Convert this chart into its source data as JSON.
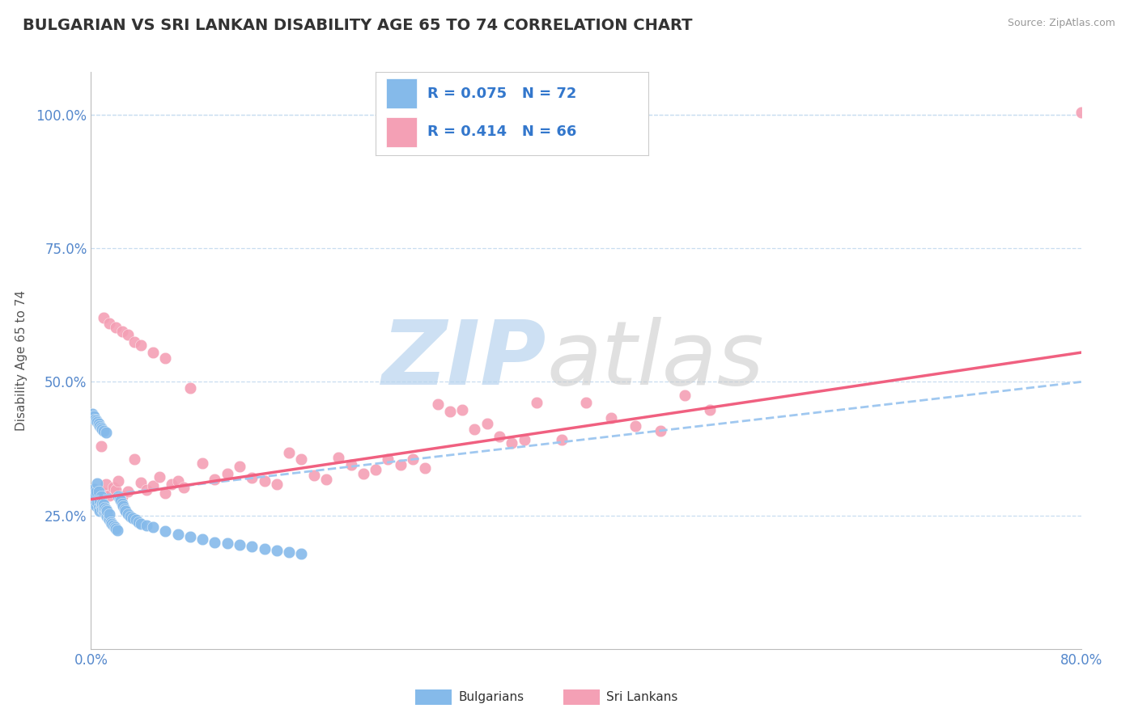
{
  "title": "BULGARIAN VS SRI LANKAN DISABILITY AGE 65 TO 74 CORRELATION CHART",
  "source": "Source: ZipAtlas.com",
  "ylabel": "Disability Age 65 to 74",
  "x_min": 0.0,
  "x_max": 0.8,
  "y_min": 0.0,
  "y_max": 1.08,
  "xticks": [
    0.0,
    0.1,
    0.2,
    0.3,
    0.4,
    0.5,
    0.6,
    0.7,
    0.8
  ],
  "xticklabels": [
    "0.0%",
    "",
    "",
    "",
    "",
    "",
    "",
    "",
    "80.0%"
  ],
  "yticks": [
    0.25,
    0.5,
    0.75,
    1.0
  ],
  "yticklabels": [
    "25.0%",
    "50.0%",
    "75.0%",
    "100.0%"
  ],
  "legend_R1": "R = 0.075",
  "legend_N1": "N = 72",
  "legend_R2": "R = 0.414",
  "legend_N2": "N = 66",
  "bulgarian_color": "#85baea",
  "srilankan_color": "#f4a0b5",
  "trendline1_color": "#a0c8f0",
  "trendline2_color": "#f06080",
  "watermark_color_zip": "#b8d4ee",
  "watermark_color_atlas": "#c8c8c8",
  "title_color": "#333333",
  "title_fontsize": 14,
  "axis_label_color": "#555555",
  "tick_color": "#5588cc",
  "legend_text_color": "#3377cc",
  "bg_color": "#ffffff",
  "grid_color": "#c8ddf0",
  "bulgarian_x": [
    0.001,
    0.002,
    0.002,
    0.003,
    0.003,
    0.004,
    0.004,
    0.005,
    0.005,
    0.006,
    0.006,
    0.007,
    0.007,
    0.008,
    0.008,
    0.009,
    0.009,
    0.01,
    0.01,
    0.011,
    0.011,
    0.012,
    0.012,
    0.013,
    0.013,
    0.014,
    0.015,
    0.015,
    0.016,
    0.017,
    0.018,
    0.019,
    0.02,
    0.021,
    0.022,
    0.023,
    0.024,
    0.025,
    0.026,
    0.027,
    0.028,
    0.03,
    0.032,
    0.034,
    0.036,
    0.038,
    0.04,
    0.045,
    0.05,
    0.06,
    0.07,
    0.08,
    0.09,
    0.1,
    0.11,
    0.12,
    0.13,
    0.14,
    0.15,
    0.16,
    0.17,
    0.001,
    0.002,
    0.003,
    0.004,
    0.005,
    0.006,
    0.007,
    0.008,
    0.009,
    0.01,
    0.012
  ],
  "bulgarian_y": [
    0.28,
    0.29,
    0.3,
    0.27,
    0.285,
    0.268,
    0.295,
    0.275,
    0.31,
    0.265,
    0.295,
    0.258,
    0.278,
    0.268,
    0.285,
    0.262,
    0.272,
    0.258,
    0.27,
    0.255,
    0.265,
    0.252,
    0.262,
    0.248,
    0.258,
    0.245,
    0.242,
    0.252,
    0.238,
    0.235,
    0.232,
    0.228,
    0.225,
    0.222,
    0.285,
    0.282,
    0.278,
    0.272,
    0.268,
    0.262,
    0.258,
    0.252,
    0.248,
    0.245,
    0.242,
    0.238,
    0.235,
    0.232,
    0.228,
    0.22,
    0.215,
    0.21,
    0.205,
    0.2,
    0.198,
    0.195,
    0.192,
    0.188,
    0.185,
    0.182,
    0.178,
    0.44,
    0.435,
    0.43,
    0.428,
    0.425,
    0.422,
    0.418,
    0.415,
    0.412,
    0.408,
    0.405
  ],
  "srilankan_x": [
    0.003,
    0.005,
    0.008,
    0.01,
    0.012,
    0.015,
    0.018,
    0.02,
    0.022,
    0.025,
    0.03,
    0.035,
    0.04,
    0.045,
    0.05,
    0.055,
    0.06,
    0.065,
    0.07,
    0.075,
    0.08,
    0.09,
    0.1,
    0.11,
    0.12,
    0.13,
    0.14,
    0.15,
    0.16,
    0.17,
    0.18,
    0.19,
    0.2,
    0.21,
    0.22,
    0.23,
    0.24,
    0.25,
    0.26,
    0.27,
    0.28,
    0.29,
    0.3,
    0.31,
    0.32,
    0.33,
    0.34,
    0.35,
    0.36,
    0.38,
    0.4,
    0.42,
    0.44,
    0.46,
    0.48,
    0.5,
    0.01,
    0.015,
    0.02,
    0.025,
    0.03,
    0.035,
    0.04,
    0.05,
    0.06,
    0.8
  ],
  "srilankan_y": [
    0.295,
    0.285,
    0.38,
    0.292,
    0.308,
    0.288,
    0.302,
    0.298,
    0.315,
    0.285,
    0.295,
    0.355,
    0.312,
    0.298,
    0.305,
    0.322,
    0.292,
    0.308,
    0.315,
    0.302,
    0.488,
    0.348,
    0.318,
    0.328,
    0.342,
    0.32,
    0.315,
    0.308,
    0.368,
    0.355,
    0.325,
    0.318,
    0.358,
    0.345,
    0.328,
    0.335,
    0.355,
    0.345,
    0.355,
    0.338,
    0.458,
    0.445,
    0.448,
    0.412,
    0.422,
    0.398,
    0.385,
    0.392,
    0.462,
    0.392,
    0.462,
    0.432,
    0.418,
    0.408,
    0.475,
    0.448,
    0.62,
    0.61,
    0.602,
    0.595,
    0.588,
    0.575,
    0.568,
    0.555,
    0.545,
    1.005
  ],
  "trendline1_x0": 0.0,
  "trendline1_x1": 0.8,
  "trendline1_y0": 0.285,
  "trendline1_y1": 0.5,
  "trendline2_x0": 0.0,
  "trendline2_x1": 0.8,
  "trendline2_y0": 0.28,
  "trendline2_y1": 0.555
}
